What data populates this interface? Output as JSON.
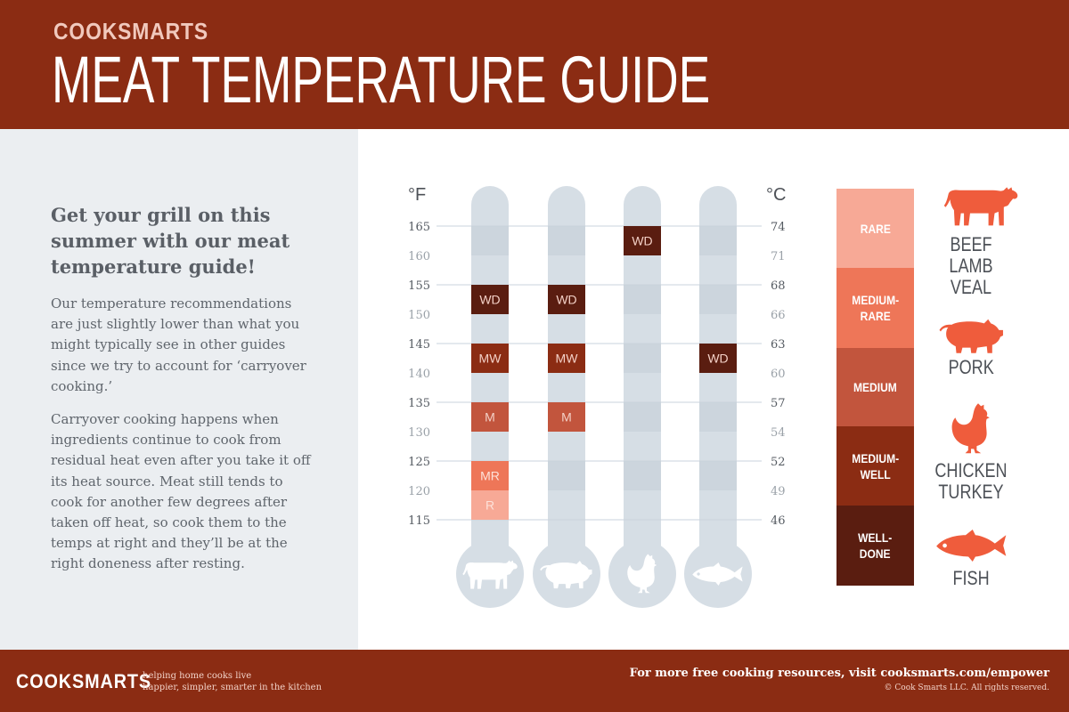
{
  "header": {
    "brand": "COOKSMARTS",
    "title": "MEAT TEMPERATURE GUIDE"
  },
  "intro": {
    "heading": "Get your grill on this summer with our meat temperature guide!",
    "paragraphs": [
      "Our temperature recommendations are just slightly lower than what you might typically see in other guides since we try to account for ‘carryover cooking.’",
      "Carryover cooking happens when ingredients continue to cook from residual heat even after you take it off its heat source. Meat still tends to cook for another few degrees after taken off heat, so cook them to the temps at right and they’ll be at the right doneness after resting."
    ]
  },
  "chart_data": {
    "type": "table",
    "left_axis_label": "°F",
    "right_axis_label": "°C",
    "fahrenheit_ticks": [
      "165",
      "160",
      "155",
      "150",
      "145",
      "140",
      "135",
      "130",
      "125",
      "120",
      "115"
    ],
    "celsius_ticks": [
      "74",
      "71",
      "68",
      "66",
      "63",
      "60",
      "57",
      "54",
      "52",
      "49",
      "46"
    ],
    "fahrenheit_range": [
      115,
      165
    ],
    "columns": [
      {
        "animal": "beef-lamb-veal",
        "icon": "cow-icon",
        "markers": [
          {
            "label": "WD",
            "from_f": 150,
            "to_f": 155,
            "color": "#5a1d10"
          },
          {
            "label": "MW",
            "from_f": 140,
            "to_f": 145,
            "color": "#8b2c13"
          },
          {
            "label": "M",
            "from_f": 130,
            "to_f": 135,
            "color": "#c2553d"
          },
          {
            "label": "MR",
            "from_f": 120,
            "to_f": 125,
            "color": "#ee7658"
          },
          {
            "label": "R",
            "from_f": 115,
            "to_f": 120,
            "color": "#f7a996"
          }
        ]
      },
      {
        "animal": "pork",
        "icon": "pig-icon",
        "markers": [
          {
            "label": "WD",
            "from_f": 150,
            "to_f": 155,
            "color": "#5a1d10"
          },
          {
            "label": "MW",
            "from_f": 140,
            "to_f": 145,
            "color": "#8b2c13"
          },
          {
            "label": "M",
            "from_f": 130,
            "to_f": 135,
            "color": "#c2553d"
          }
        ]
      },
      {
        "animal": "chicken-turkey",
        "icon": "chicken-icon",
        "markers": [
          {
            "label": "WD",
            "from_f": 160,
            "to_f": 165,
            "color": "#5a1d10"
          }
        ]
      },
      {
        "animal": "fish",
        "icon": "fish-icon",
        "markers": [
          {
            "label": "WD",
            "from_f": 140,
            "to_f": 145,
            "color": "#5a1d10"
          }
        ]
      }
    ]
  },
  "legend": [
    {
      "label": "RARE",
      "color": "#f7a996"
    },
    {
      "label": "MEDIUM-RARE",
      "color": "#ee7658"
    },
    {
      "label": "MEDIUM",
      "color": "#c2553d"
    },
    {
      "label": "MEDIUM-WELL",
      "color": "#8b2c13"
    },
    {
      "label": "WELL-DONE",
      "color": "#5a1d10"
    }
  ],
  "animals": [
    {
      "label": "BEEF LAMB VEAL",
      "icon": "cow-icon"
    },
    {
      "label": "PORK",
      "icon": "pig-icon"
    },
    {
      "label": "CHICKEN TURKEY",
      "icon": "chicken-icon"
    },
    {
      "label": "FISH",
      "icon": "fish-icon"
    }
  ],
  "footer": {
    "brand": "COOKSMARTS",
    "tagline_line1": "helping home cooks live",
    "tagline_line2": "happier, simpler, smarter in the kitchen",
    "cta": "For more free cooking resources, visit cooksmarts.com/empower",
    "copyright": "© Cook Smarts LLC. All rights reserved."
  },
  "colors": {
    "brand_red": "#8b2c13",
    "icon_orange": "#ef5c3c",
    "tube": "#d6dee5",
    "tube_dark": "#c4ced7",
    "panel": "#ebeef1"
  }
}
